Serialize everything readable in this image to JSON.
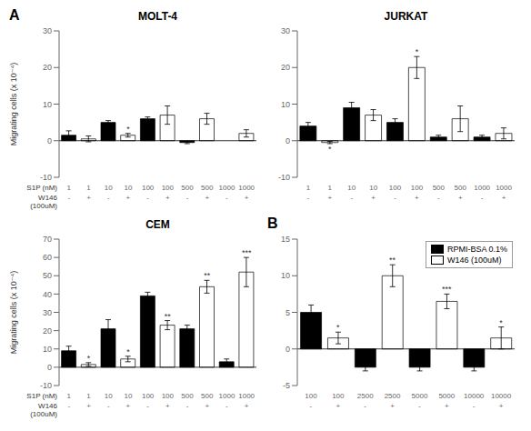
{
  "chart_data": [
    {
      "type": "bar",
      "panel_label": "A",
      "title": "MOLT-4",
      "ylabel": "Migrating cells (x 10⁻⁴)",
      "xlabel": "S1P (nM)",
      "sublabel_title": [
        "W146",
        "(100uM)"
      ],
      "categories": [
        "1",
        "1",
        "10",
        "10",
        "100",
        "100",
        "500",
        "500",
        "1000",
        "1000"
      ],
      "sublabels": [
        "-",
        "+",
        "-",
        "+",
        "-",
        "+",
        "-",
        "+",
        "-",
        "+"
      ],
      "values": [
        1.5,
        0.5,
        5.0,
        1.5,
        6.0,
        7.0,
        -0.5,
        6.0,
        0.0,
        2.0
      ],
      "errors": [
        1.2,
        0.8,
        0.5,
        0.5,
        0.5,
        2.5,
        0.3,
        1.5,
        0.8,
        1.0
      ],
      "colors": [
        "black",
        "white",
        "black",
        "white",
        "black",
        "white",
        "black",
        "white",
        "black",
        "white"
      ],
      "annotations": [
        null,
        null,
        null,
        "*",
        null,
        null,
        null,
        null,
        null,
        null
      ],
      "ylim": [
        -10,
        30
      ],
      "yticks": [
        -10,
        0,
        10,
        20,
        30
      ],
      "grid": false
    },
    {
      "type": "bar",
      "title": "JURKAT",
      "categories": [
        "1",
        "1",
        "10",
        "10",
        "100",
        "100",
        "500",
        "500",
        "1000",
        "1000"
      ],
      "sublabels": [
        "-",
        "+",
        "-",
        "+",
        "-",
        "+",
        "-",
        "+",
        "-",
        "+"
      ],
      "values": [
        4.0,
        -0.5,
        9.0,
        7.0,
        5.0,
        20.0,
        1.0,
        6.0,
        1.0,
        2.0
      ],
      "errors": [
        1.0,
        0.3,
        1.5,
        1.5,
        1.0,
        3.0,
        0.5,
        3.5,
        0.5,
        1.5
      ],
      "colors": [
        "black",
        "white",
        "black",
        "white",
        "black",
        "white",
        "black",
        "white",
        "black",
        "white"
      ],
      "annotations": [
        null,
        "*",
        null,
        null,
        null,
        "*",
        null,
        null,
        null,
        null
      ],
      "ylim": [
        -10,
        30
      ],
      "yticks": [
        -10,
        0,
        10,
        20,
        30
      ],
      "grid": false
    },
    {
      "type": "bar",
      "title": "CEM",
      "ylabel": "Migrating cells (x 10⁻⁴)",
      "xlabel": "S1P (nM)",
      "sublabel_title": [
        "W146",
        "(100uM)"
      ],
      "categories": [
        "1",
        "1",
        "10",
        "10",
        "100",
        "100",
        "500",
        "500",
        "1000",
        "1000"
      ],
      "sublabels": [
        "-",
        "+",
        "-",
        "+",
        "-",
        "+",
        "-",
        "+",
        "-",
        "+"
      ],
      "values": [
        9.0,
        1.5,
        21.0,
        4.5,
        39.0,
        23.0,
        21.0,
        44.0,
        3.0,
        52.0
      ],
      "errors": [
        2.5,
        1.0,
        5.0,
        1.5,
        2.0,
        2.5,
        2.0,
        3.5,
        1.5,
        8.0
      ],
      "colors": [
        "black",
        "white",
        "black",
        "white",
        "black",
        "white",
        "black",
        "white",
        "black",
        "white"
      ],
      "annotations": [
        null,
        "*",
        null,
        "*",
        null,
        "**",
        null,
        "**",
        null,
        "***"
      ],
      "ylim": [
        -10,
        70
      ],
      "yticks": [
        -10,
        0,
        10,
        20,
        30,
        40,
        50,
        60,
        70
      ],
      "grid": false
    },
    {
      "type": "bar",
      "panel_label": "B",
      "categories": [
        "100",
        "100",
        "2500",
        "2500",
        "5000",
        "5000",
        "10000",
        "10000"
      ],
      "sublabels": [
        "-",
        "+",
        "-",
        "+",
        "-",
        "+",
        "-",
        "+"
      ],
      "values": [
        5.0,
        1.5,
        -2.5,
        10.0,
        -2.5,
        6.5,
        -2.5,
        1.5
      ],
      "errors": [
        1.0,
        0.8,
        0.5,
        1.5,
        0.5,
        1.0,
        0.5,
        1.5
      ],
      "colors": [
        "black",
        "white",
        "black",
        "white",
        "black",
        "white",
        "black",
        "white"
      ],
      "annotations": [
        null,
        "*",
        null,
        "**",
        null,
        "***",
        null,
        "*"
      ],
      "ylim": [
        -5,
        15
      ],
      "yticks": [
        -5,
        0,
        5,
        10,
        15
      ],
      "grid": false,
      "legend": "upper right",
      "legend_entries": [
        {
          "name": "RPMI-BSA 0.1%",
          "color": "black"
        },
        {
          "name": "W146 (100uM)",
          "color": "white"
        }
      ]
    }
  ]
}
